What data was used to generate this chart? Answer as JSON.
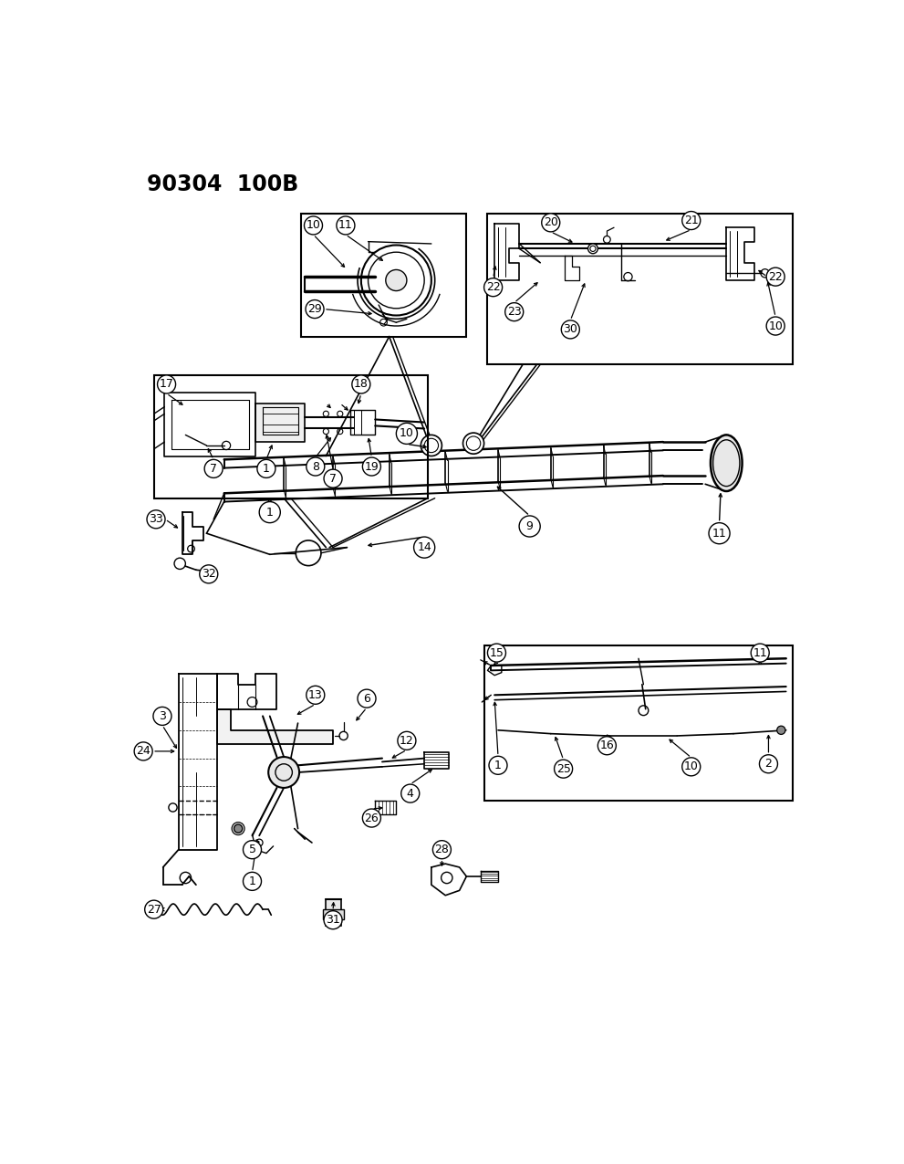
{
  "title": "90304  100B",
  "bg_color": "#ffffff",
  "line_color": "#000000",
  "fig_width": 9.91,
  "fig_height": 12.75,
  "dpi": 100
}
